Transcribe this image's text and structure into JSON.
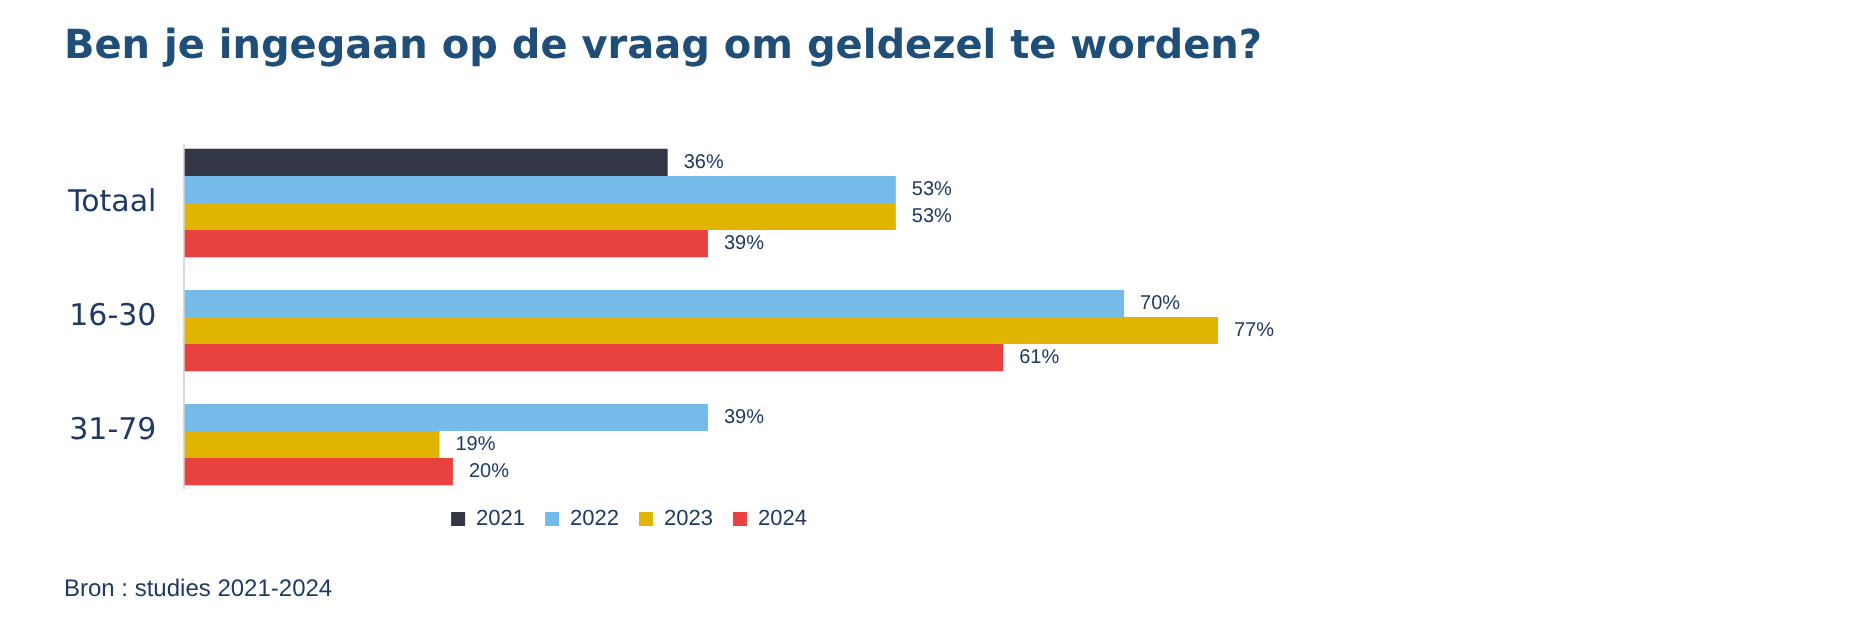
{
  "chart_data": {
    "type": "bar",
    "orientation": "horizontal",
    "title": "Ben je ingegaan op de vraag om geldezel te worden?",
    "categories": [
      "Totaal",
      "16-30",
      "31-79"
    ],
    "series": [
      {
        "name": "2021",
        "color": "#333645",
        "values": [
          36,
          null,
          null
        ],
        "value_labels": [
          "36%",
          null,
          null
        ]
      },
      {
        "name": "2022",
        "color": "#74bbea",
        "values": [
          53,
          70,
          39
        ],
        "value_labels": [
          "53%",
          "70%",
          "39%"
        ]
      },
      {
        "name": "2023",
        "color": "#e0b400",
        "values": [
          53,
          77,
          19
        ],
        "value_labels": [
          "53%",
          "77%",
          "19%"
        ]
      },
      {
        "name": "2024",
        "color": "#e8413f",
        "values": [
          39,
          61,
          20
        ],
        "value_labels": [
          "39%",
          "61%",
          "20%"
        ]
      }
    ],
    "legend": "bottom",
    "annotations": [
      "Bron : studies 2021-2024"
    ]
  }
}
